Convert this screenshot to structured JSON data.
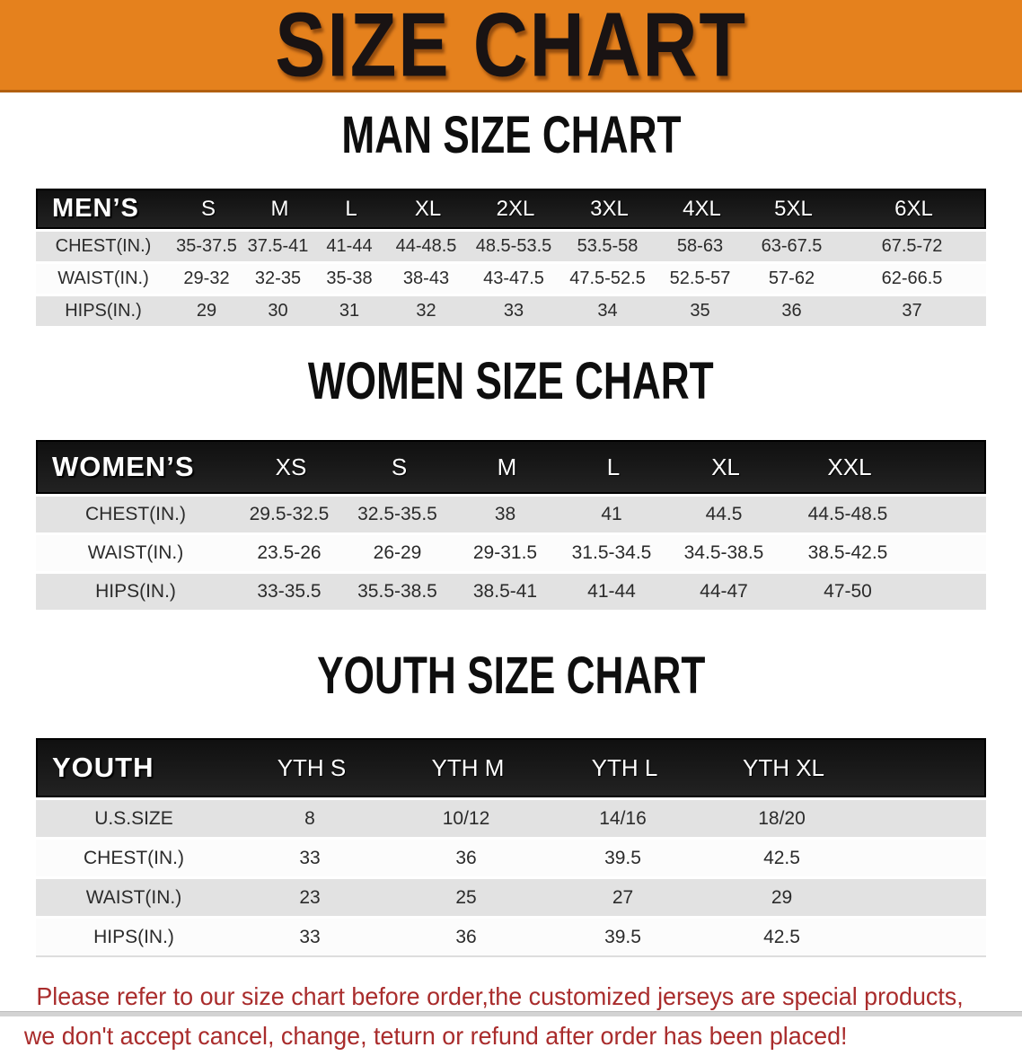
{
  "banner": {
    "title": "SIZE CHART"
  },
  "colors": {
    "banner_bg": "#E5811D",
    "header_bar": "#191919",
    "row_gray": "#E2E2E2",
    "row_white": "#FCFCFC",
    "note_red": "#A92C2C"
  },
  "men": {
    "heading": "MAN SIZE CHART",
    "label": "MEN’S",
    "sizes": [
      "S",
      "M",
      "L",
      "XL",
      "2XL",
      "3XL",
      "4XL",
      "5XL",
      "6XL"
    ],
    "rows": [
      {
        "label": "CHEST(IN.)",
        "values": [
          "35-37.5",
          "37.5-41",
          "41-44",
          "44-48.5",
          "48.5-53.5",
          "53.5-58",
          "58-63",
          "63-67.5",
          "67.5-72"
        ]
      },
      {
        "label": "WAIST(IN.)",
        "values": [
          "29-32",
          "32-35",
          "35-38",
          "38-43",
          "43-47.5",
          "47.5-52.5",
          "52.5-57",
          "57-62",
          "62-66.5"
        ]
      },
      {
        "label": "HIPS(IN.)",
        "values": [
          "29",
          "30",
          "31",
          "32",
          "33",
          "34",
          "35",
          "36",
          "37"
        ]
      }
    ]
  },
  "women": {
    "heading": "WOMEN SIZE CHART",
    "label": "WOMEN’S",
    "sizes": [
      "XS",
      "S",
      "M",
      "L",
      "XL",
      "XXL"
    ],
    "rows": [
      {
        "label": "CHEST(IN.)",
        "values": [
          "29.5-32.5",
          "32.5-35.5",
          "38",
          "41",
          "44.5",
          "44.5-48.5"
        ]
      },
      {
        "label": "WAIST(IN.)",
        "values": [
          "23.5-26",
          "26-29",
          "29-31.5",
          "31.5-34.5",
          "34.5-38.5",
          "38.5-42.5"
        ]
      },
      {
        "label": "HIPS(IN.)",
        "values": [
          "33-35.5",
          "35.5-38.5",
          "38.5-41",
          "41-44",
          "44-47",
          "47-50"
        ]
      }
    ]
  },
  "youth": {
    "heading": "YOUTH SIZE CHART",
    "label": "YOUTH",
    "sizes": [
      "YTH S",
      "YTH M",
      "YTH L",
      "YTH XL"
    ],
    "rows": [
      {
        "label": "U.S.SIZE",
        "values": [
          "8",
          "10/12",
          "14/16",
          "18/20"
        ]
      },
      {
        "label": "CHEST(IN.)",
        "values": [
          "33",
          "36",
          "39.5",
          "42.5"
        ]
      },
      {
        "label": "WAIST(IN.)",
        "values": [
          "23",
          "25",
          "27",
          "29"
        ]
      },
      {
        "label": "HIPS(IN.)",
        "values": [
          "33",
          "36",
          "39.5",
          "42.5"
        ]
      }
    ]
  },
  "note": {
    "line1": "Please refer to our size chart before order,the customized jerseys are special products,",
    "line2": "we don't accept cancel, change, teturn or refund after order has been placed!"
  }
}
